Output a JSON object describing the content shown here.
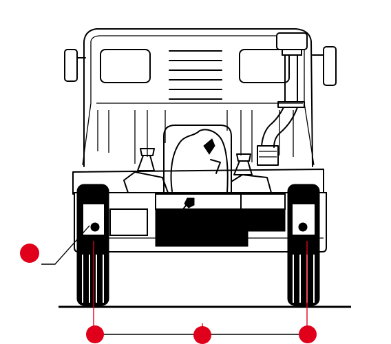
{
  "figure": {
    "subject": "truck-front-view",
    "colors": {
      "line": "#000000",
      "marker": "#e0001b",
      "background": "#ffffff"
    }
  },
  "callouts": [
    {
      "id": "front-lamp-callout",
      "label": ""
    },
    {
      "id": "left-wheel-track-callout",
      "label": ""
    },
    {
      "id": "center-track-callout",
      "label": ""
    },
    {
      "id": "right-wheel-track-callout",
      "label": ""
    }
  ]
}
